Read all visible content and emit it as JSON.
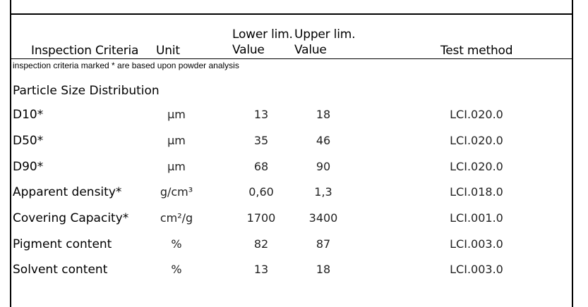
{
  "header": {
    "criteria": "Inspection Criteria",
    "unit": "Unit",
    "lower_line1": "Lower lim.",
    "lower_line2": "Value",
    "upper_line1": "Upper lim.",
    "upper_line2": "Value",
    "method": "Test method"
  },
  "note": "inspection criteria marked * are based upon powder analysis",
  "section_title": "Particle Size Distribution",
  "rows": [
    {
      "name": "D10*",
      "unit": "µm",
      "lower": "13",
      "upper": "18",
      "method": "LCI.020.0"
    },
    {
      "name": "D50*",
      "unit": "µm",
      "lower": "35",
      "upper": "46",
      "method": "LCI.020.0"
    },
    {
      "name": "D90*",
      "unit": "µm",
      "lower": "68",
      "upper": "90",
      "method": "LCI.020.0"
    },
    {
      "name": "Apparent density*",
      "unit": "g/cm³",
      "lower": "0,60",
      "upper": "1,3",
      "method": "LCI.018.0"
    },
    {
      "name": "Covering Capacity*",
      "unit": "cm²/g",
      "lower": "1700",
      "upper": "3400",
      "method": "LCI.001.0"
    },
    {
      "name": "Pigment content",
      "unit": "%",
      "lower": "82",
      "upper": "87",
      "method": "LCI.003.0"
    },
    {
      "name": "Solvent content",
      "unit": "%",
      "lower": "13",
      "upper": "18",
      "method": "LCI.003.0"
    }
  ]
}
